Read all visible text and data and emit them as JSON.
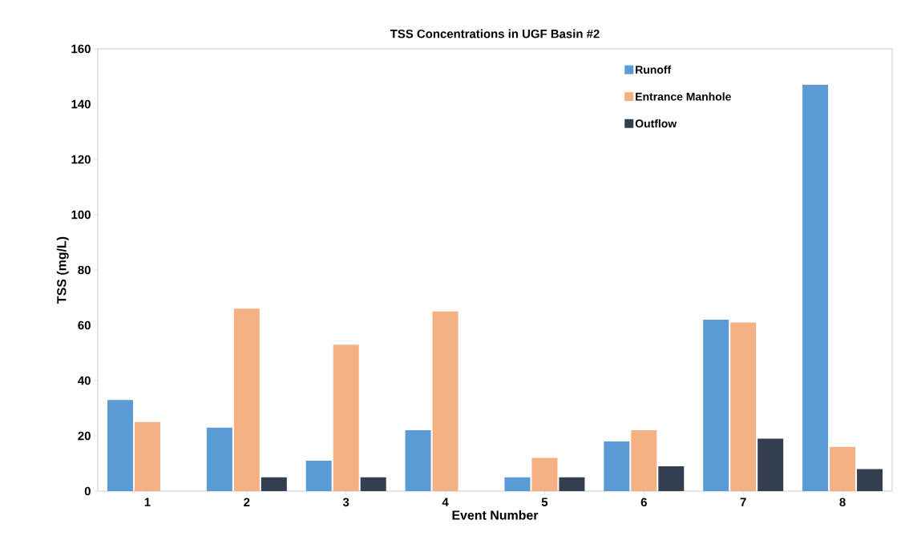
{
  "chart_data": {
    "type": "bar",
    "title": "TSS Concentrations in UGF Basin #2",
    "xlabel": "Event Number",
    "ylabel": "TSS (mg/L)",
    "categories": [
      "1",
      "2",
      "3",
      "4",
      "5",
      "6",
      "7",
      "8"
    ],
    "series": [
      {
        "name": "Runoff",
        "color": "#5b9bd5",
        "values": [
          33,
          23,
          11,
          22,
          5,
          18,
          62,
          147
        ]
      },
      {
        "name": "Entrance Manhole",
        "color": "#f4b183",
        "values": [
          25,
          66,
          53,
          65,
          12,
          22,
          61,
          16
        ]
      },
      {
        "name": "Outflow",
        "color": "#333f50",
        "values": [
          null,
          5,
          5,
          null,
          5,
          9,
          19,
          8
        ]
      }
    ],
    "ylim": [
      0,
      160
    ],
    "yticks": [
      0,
      20,
      40,
      60,
      80,
      100,
      120,
      140,
      160
    ],
    "grid": false,
    "legend": "top right"
  }
}
